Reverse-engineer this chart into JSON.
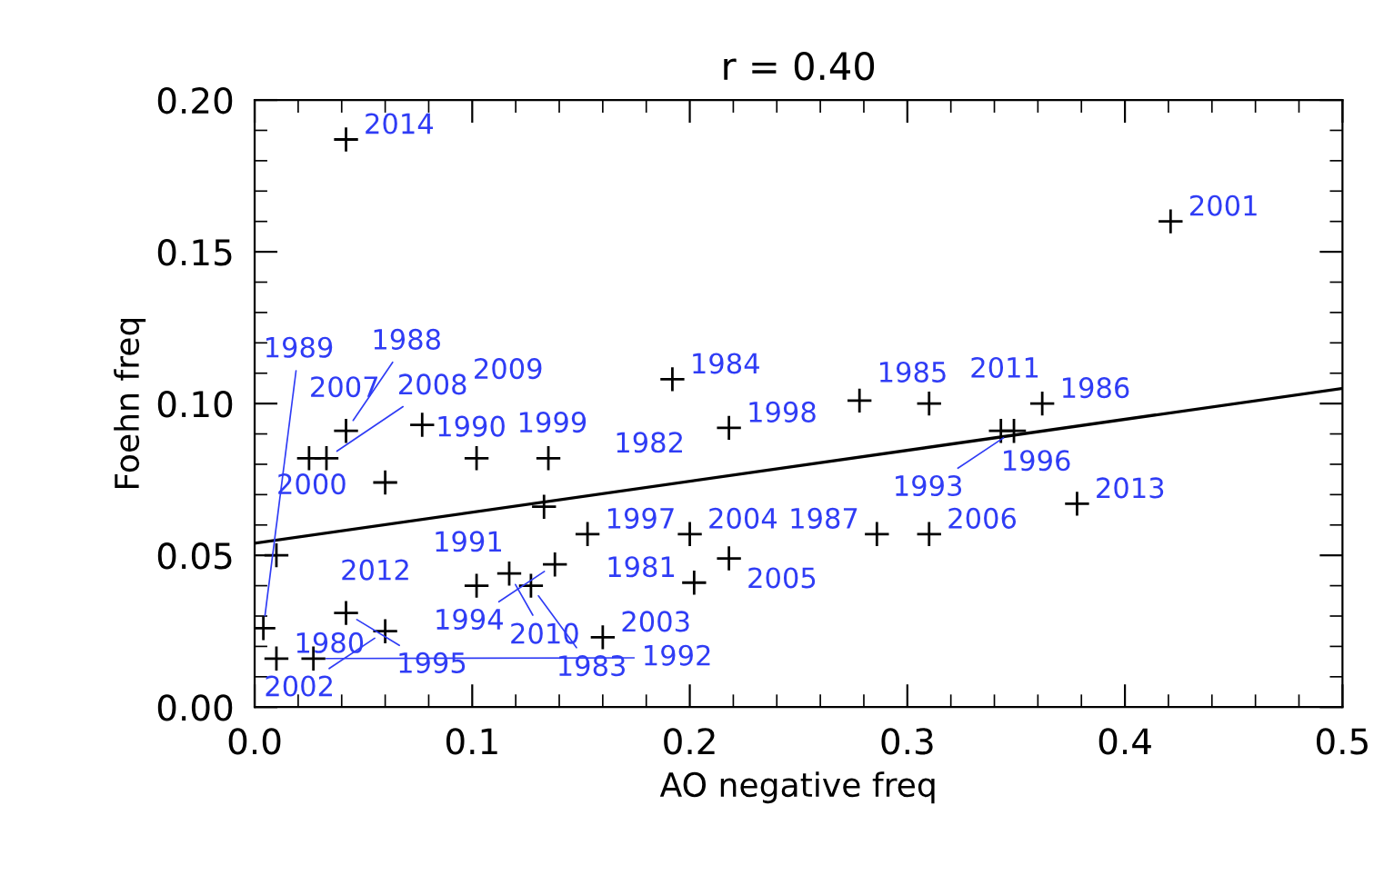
{
  "chart_data": {
    "type": "scatter",
    "title": "r = 0.40",
    "xlabel": "AO negative freq",
    "ylabel": "Foehn freq",
    "xlim": [
      0.0,
      0.5
    ],
    "ylim": [
      0.0,
      0.2
    ],
    "xticks": [
      {
        "value": 0.0,
        "label": "0.0"
      },
      0.1,
      0.2,
      0.3,
      0.4,
      0.5
    ],
    "yticks": [
      {
        "value": 0.0,
        "label": "0.00"
      },
      0.05,
      {
        "value": 0.1,
        "label": "0.10"
      },
      0.15,
      {
        "value": 0.2,
        "label": "0.20"
      }
    ],
    "marker": "cross",
    "grid": false,
    "legend": false,
    "series": [
      {
        "color": "#000000",
        "x": [
          0.042,
          0.421,
          0.192,
          0.218,
          0.278,
          0.31,
          0.362,
          0.343,
          0.349,
          0.378,
          0.286,
          0.31,
          0.2,
          0.153,
          0.133,
          0.218,
          0.202,
          0.16,
          0.138,
          0.127,
          0.117,
          0.102,
          0.01,
          0.06,
          0.025,
          0.033,
          0.042,
          0.077,
          0.102,
          0.135,
          0.042,
          0.06,
          0.004,
          0.01,
          0.027
        ],
        "values": [
          0.187,
          0.16,
          0.108,
          0.092,
          0.101,
          0.1,
          0.1,
          0.091,
          0.091,
          0.067,
          0.057,
          0.057,
          0.057,
          0.057,
          0.066,
          0.049,
          0.041,
          0.023,
          0.047,
          0.04,
          0.044,
          0.04,
          0.05,
          0.074,
          0.082,
          0.082,
          0.091,
          0.093,
          0.082,
          0.082,
          0.031,
          0.025,
          0.026,
          0.016,
          0.016
        ]
      },
      {
        "type": "line",
        "marker": "none",
        "color": "#000000",
        "x": [
          0.0,
          0.5
        ],
        "values": [
          0.054,
          0.105
        ]
      }
    ],
    "annotations": [
      {
        "text": "2014",
        "x": 0.042,
        "y": 0.187
      },
      {
        "text": "2001",
        "x": 0.421,
        "y": 0.16
      },
      {
        "text": "1984",
        "x": 0.192,
        "y": 0.108
      },
      {
        "text": "1998",
        "x": 0.218,
        "y": 0.092
      },
      {
        "text": "1985",
        "x": 0.278,
        "y": 0.101
      },
      {
        "text": "2011",
        "x": 0.31,
        "y": 0.1
      },
      {
        "text": "1986",
        "x": 0.362,
        "y": 0.1
      },
      {
        "text": "1996",
        "x": 0.343,
        "y": 0.091
      },
      {
        "text": "1993",
        "x": 0.349,
        "y": 0.091
      },
      {
        "text": "2013",
        "x": 0.378,
        "y": 0.067
      },
      {
        "text": "1987",
        "x": 0.286,
        "y": 0.057
      },
      {
        "text": "2006",
        "x": 0.31,
        "y": 0.057
      },
      {
        "text": "2004",
        "x": 0.2,
        "y": 0.057
      },
      {
        "text": "1997",
        "x": 0.153,
        "y": 0.057
      },
      {
        "text": "1991",
        "x": 0.133,
        "y": 0.066
      },
      {
        "text": "2005",
        "x": 0.218,
        "y": 0.049
      },
      {
        "text": "1981",
        "x": 0.202,
        "y": 0.041
      },
      {
        "text": "2003",
        "x": 0.16,
        "y": 0.023
      },
      {
        "text": "1994",
        "x": 0.138,
        "y": 0.047
      },
      {
        "text": "1983",
        "x": 0.127,
        "y": 0.04
      },
      {
        "text": "2010",
        "x": 0.117,
        "y": 0.044
      },
      {
        "text": "2012",
        "x": 0.102,
        "y": 0.04
      },
      {
        "text": "2000",
        "x": 0.01,
        "y": 0.05
      },
      {
        "text": "1990",
        "x": 0.06,
        "y": 0.074
      },
      {
        "text": "2007",
        "x": 0.025,
        "y": 0.082
      },
      {
        "text": "2008",
        "x": 0.033,
        "y": 0.082
      },
      {
        "text": "1988",
        "x": 0.042,
        "y": 0.091
      },
      {
        "text": "2009",
        "x": 0.077,
        "y": 0.093
      },
      {
        "text": "1999",
        "x": 0.102,
        "y": 0.082
      },
      {
        "text": "1982",
        "x": 0.135,
        "y": 0.082
      },
      {
        "text": "1995",
        "x": 0.042,
        "y": 0.031
      },
      {
        "text": "2002",
        "x": 0.06,
        "y": 0.025
      },
      {
        "text": "1989",
        "x": 0.004,
        "y": 0.026
      },
      {
        "text": "1980",
        "x": 0.01,
        "y": 0.016
      },
      {
        "text": "1992",
        "x": 0.027,
        "y": 0.016
      }
    ]
  }
}
